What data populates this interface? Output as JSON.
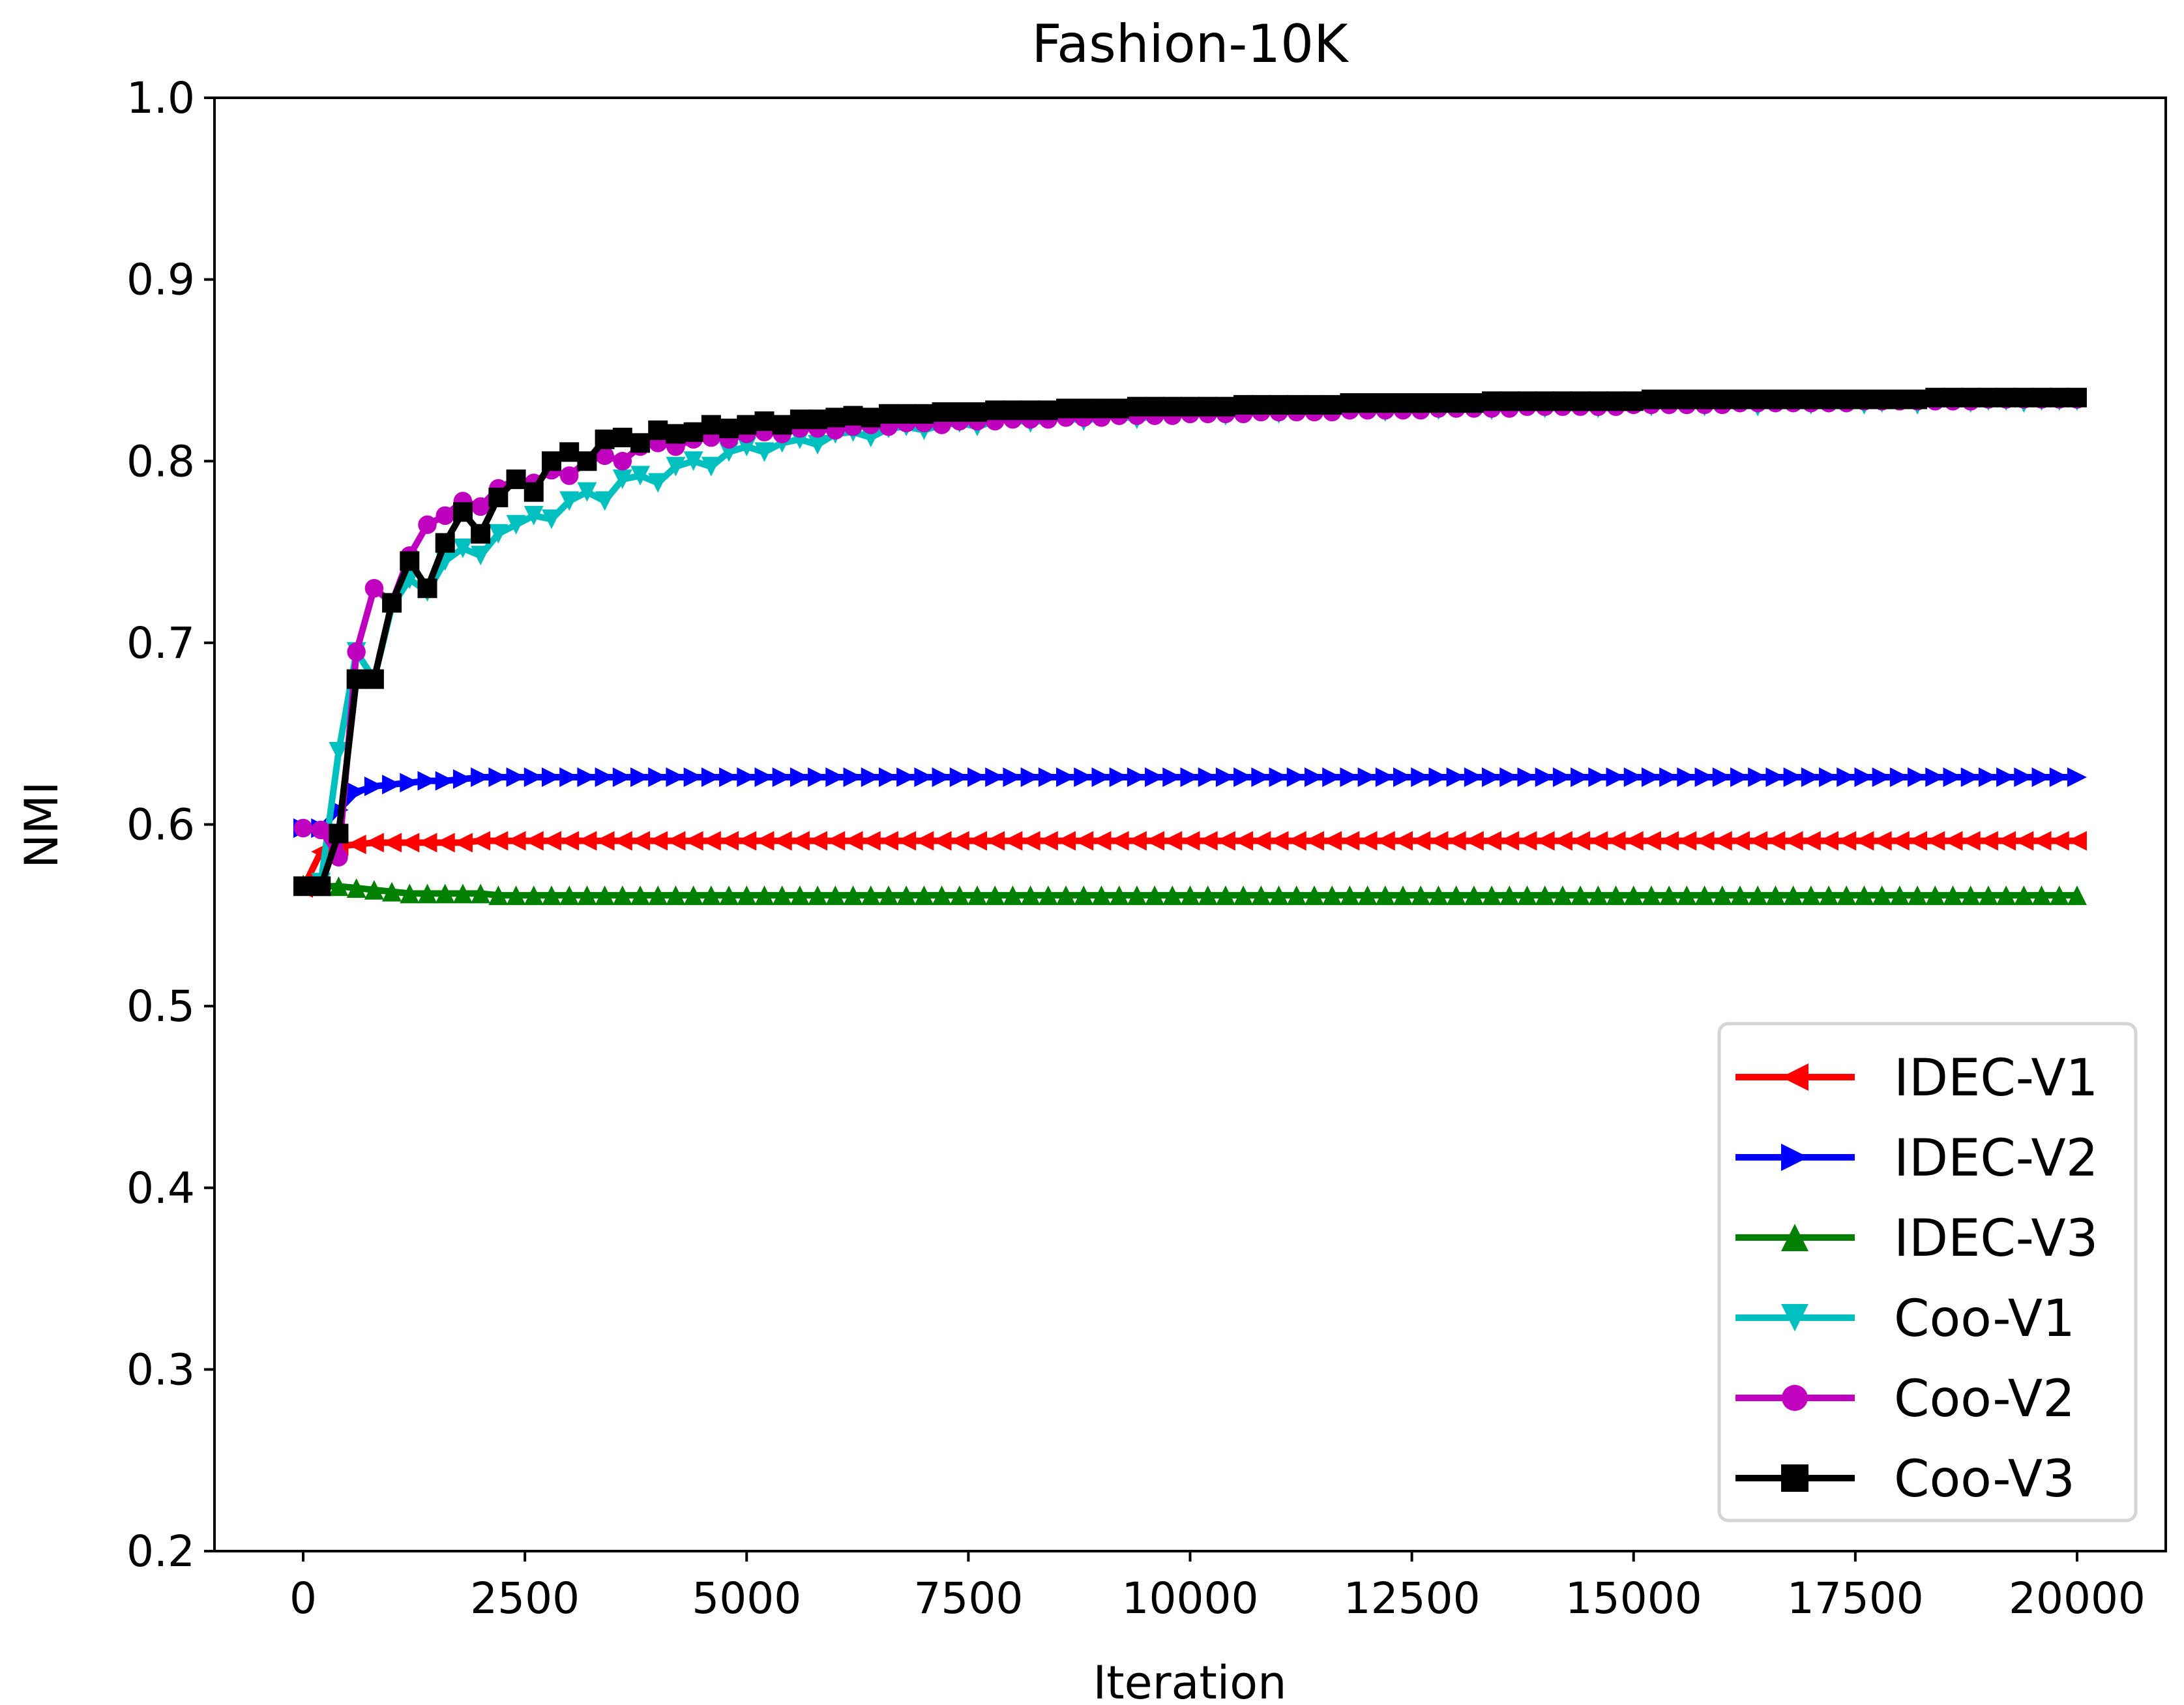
{
  "chart_data": {
    "type": "line",
    "title": "Fashion-10K",
    "xlabel": "Iteration",
    "ylabel": "NMI",
    "xlim": [
      -1000,
      21000
    ],
    "ylim": [
      0.2,
      1.0
    ],
    "grid": false,
    "legend_placement": "lower-right",
    "xticks": [
      0,
      2500,
      5000,
      7500,
      10000,
      12500,
      15000,
      17500,
      20000
    ],
    "yticks": [
      0.2,
      0.3,
      0.4,
      0.5,
      0.6,
      0.7,
      0.8,
      0.9,
      1.0
    ],
    "ytick_labels": [
      "0.2",
      "0.3",
      "0.4",
      "0.5",
      "0.6",
      "0.7",
      "0.8",
      "0.9",
      "1.0"
    ],
    "x": [
      0,
      200,
      400,
      600,
      800,
      1000,
      1200,
      1400,
      1600,
      1800,
      2000,
      2200,
      2400,
      2600,
      2800,
      3000,
      3200,
      3400,
      3600,
      3800,
      4000,
      4200,
      4400,
      4600,
      4800,
      5000,
      5200,
      5400,
      5600,
      5800,
      6000,
      6200,
      6400,
      6600,
      6800,
      7000,
      7200,
      7400,
      7600,
      7800,
      8000,
      8200,
      8400,
      8600,
      8800,
      9000,
      9200,
      9400,
      9600,
      9800,
      10000,
      10200,
      10400,
      10600,
      10800,
      11000,
      11200,
      11400,
      11600,
      11800,
      12000,
      12200,
      12400,
      12600,
      12800,
      13000,
      13200,
      13400,
      13600,
      13800,
      14000,
      14200,
      14400,
      14600,
      14800,
      15000,
      15200,
      15400,
      15600,
      15800,
      16000,
      16200,
      16400,
      16600,
      16800,
      17000,
      17200,
      17400,
      17600,
      17800,
      18000,
      18200,
      18400,
      18600,
      18800,
      19000,
      19200,
      19400,
      19600,
      19800,
      20000
    ],
    "series": [
      {
        "name": "IDEC-V1",
        "color": "#ff0000",
        "marker": "triangle-left",
        "values": [
          0.565,
          0.585,
          0.588,
          0.589,
          0.59,
          0.59,
          0.59,
          0.59,
          0.59,
          0.59,
          0.591,
          0.591,
          0.591,
          0.591,
          0.591,
          0.591,
          0.591,
          0.591,
          0.591,
          0.591,
          0.591,
          0.591,
          0.591,
          0.591,
          0.591,
          0.591,
          0.591,
          0.591,
          0.591,
          0.591,
          0.591,
          0.591,
          0.591,
          0.591,
          0.591,
          0.591,
          0.591,
          0.591,
          0.591,
          0.591,
          0.591,
          0.591,
          0.591,
          0.591,
          0.591,
          0.591,
          0.591,
          0.591,
          0.591,
          0.591,
          0.591,
          0.591,
          0.591,
          0.591,
          0.591,
          0.591,
          0.591,
          0.591,
          0.591,
          0.591,
          0.591,
          0.591,
          0.591,
          0.591,
          0.591,
          0.591,
          0.591,
          0.591,
          0.591,
          0.591,
          0.591,
          0.591,
          0.591,
          0.591,
          0.591,
          0.591,
          0.591,
          0.591,
          0.591,
          0.591,
          0.591,
          0.591,
          0.591,
          0.591,
          0.591,
          0.591,
          0.591,
          0.591,
          0.591,
          0.591,
          0.591,
          0.591,
          0.591,
          0.591,
          0.591,
          0.591,
          0.591,
          0.591,
          0.591,
          0.591,
          0.591
        ]
      },
      {
        "name": "IDEC-V2",
        "color": "#0000ff",
        "marker": "triangle-right",
        "values": [
          0.598,
          0.598,
          0.608,
          0.618,
          0.621,
          0.622,
          0.623,
          0.624,
          0.624,
          0.625,
          0.626,
          0.626,
          0.626,
          0.626,
          0.626,
          0.626,
          0.626,
          0.626,
          0.626,
          0.626,
          0.626,
          0.626,
          0.626,
          0.626,
          0.626,
          0.626,
          0.626,
          0.626,
          0.626,
          0.626,
          0.626,
          0.626,
          0.626,
          0.626,
          0.626,
          0.626,
          0.626,
          0.626,
          0.626,
          0.626,
          0.626,
          0.626,
          0.626,
          0.626,
          0.626,
          0.626,
          0.626,
          0.626,
          0.626,
          0.626,
          0.626,
          0.626,
          0.626,
          0.626,
          0.626,
          0.626,
          0.626,
          0.626,
          0.626,
          0.626,
          0.626,
          0.626,
          0.626,
          0.626,
          0.626,
          0.626,
          0.626,
          0.626,
          0.626,
          0.626,
          0.626,
          0.626,
          0.626,
          0.626,
          0.626,
          0.626,
          0.626,
          0.626,
          0.626,
          0.626,
          0.626,
          0.626,
          0.626,
          0.626,
          0.626,
          0.626,
          0.626,
          0.626,
          0.626,
          0.626,
          0.626,
          0.626,
          0.626,
          0.626,
          0.626,
          0.626,
          0.626,
          0.626,
          0.626,
          0.626,
          0.626
        ]
      },
      {
        "name": "IDEC-V3",
        "color": "#008000",
        "marker": "triangle-up",
        "values": [
          0.567,
          0.566,
          0.566,
          0.565,
          0.564,
          0.563,
          0.562,
          0.562,
          0.562,
          0.562,
          0.562,
          0.561,
          0.561,
          0.561,
          0.561,
          0.561,
          0.561,
          0.561,
          0.561,
          0.561,
          0.561,
          0.561,
          0.561,
          0.561,
          0.561,
          0.561,
          0.561,
          0.561,
          0.561,
          0.561,
          0.561,
          0.561,
          0.561,
          0.561,
          0.561,
          0.561,
          0.561,
          0.561,
          0.561,
          0.561,
          0.561,
          0.561,
          0.561,
          0.561,
          0.561,
          0.561,
          0.561,
          0.561,
          0.561,
          0.561,
          0.561,
          0.561,
          0.561,
          0.561,
          0.561,
          0.561,
          0.561,
          0.561,
          0.561,
          0.561,
          0.561,
          0.561,
          0.561,
          0.561,
          0.561,
          0.561,
          0.561,
          0.561,
          0.561,
          0.561,
          0.561,
          0.561,
          0.561,
          0.561,
          0.561,
          0.561,
          0.561,
          0.561,
          0.561,
          0.561,
          0.561,
          0.561,
          0.561,
          0.561,
          0.561,
          0.561,
          0.561,
          0.561,
          0.561,
          0.561,
          0.561,
          0.561,
          0.561,
          0.561,
          0.561,
          0.561,
          0.561,
          0.561,
          0.561,
          0.561,
          0.561
        ]
      },
      {
        "name": "Coo-V1",
        "color": "#00bfbf",
        "marker": "triangle-down",
        "values": [
          0.566,
          0.568,
          0.64,
          0.695,
          0.68,
          0.72,
          0.735,
          0.728,
          0.745,
          0.752,
          0.748,
          0.76,
          0.765,
          0.77,
          0.768,
          0.778,
          0.783,
          0.778,
          0.79,
          0.792,
          0.788,
          0.797,
          0.8,
          0.797,
          0.805,
          0.808,
          0.805,
          0.81,
          0.812,
          0.809,
          0.815,
          0.816,
          0.813,
          0.818,
          0.819,
          0.817,
          0.82,
          0.821,
          0.819,
          0.822,
          0.823,
          0.821,
          0.823,
          0.824,
          0.822,
          0.824,
          0.825,
          0.823,
          0.825,
          0.826,
          0.826,
          0.827,
          0.825,
          0.827,
          0.828,
          0.826,
          0.828,
          0.828,
          0.827,
          0.828,
          0.829,
          0.827,
          0.829,
          0.829,
          0.828,
          0.829,
          0.83,
          0.828,
          0.83,
          0.83,
          0.829,
          0.83,
          0.831,
          0.829,
          0.831,
          0.831,
          0.83,
          0.831,
          0.831,
          0.83,
          0.832,
          0.832,
          0.83,
          0.832,
          0.832,
          0.831,
          0.832,
          0.832,
          0.831,
          0.832,
          0.833,
          0.831,
          0.833,
          0.833,
          0.832,
          0.833,
          0.833,
          0.832,
          0.833,
          0.833,
          0.833
        ]
      },
      {
        "name": "Coo-V2",
        "color": "#bf00bf",
        "marker": "circle",
        "values": [
          0.598,
          0.597,
          0.582,
          0.695,
          0.73,
          0.722,
          0.748,
          0.765,
          0.77,
          0.778,
          0.775,
          0.785,
          0.79,
          0.788,
          0.795,
          0.792,
          0.8,
          0.803,
          0.8,
          0.808,
          0.81,
          0.808,
          0.812,
          0.813,
          0.812,
          0.815,
          0.816,
          0.815,
          0.818,
          0.818,
          0.817,
          0.819,
          0.82,
          0.819,
          0.821,
          0.821,
          0.82,
          0.822,
          0.822,
          0.822,
          0.823,
          0.823,
          0.823,
          0.824,
          0.824,
          0.824,
          0.825,
          0.825,
          0.825,
          0.825,
          0.826,
          0.826,
          0.826,
          0.826,
          0.827,
          0.827,
          0.827,
          0.827,
          0.827,
          0.828,
          0.828,
          0.828,
          0.828,
          0.828,
          0.829,
          0.829,
          0.829,
          0.829,
          0.829,
          0.83,
          0.83,
          0.83,
          0.83,
          0.83,
          0.83,
          0.831,
          0.831,
          0.831,
          0.831,
          0.831,
          0.831,
          0.832,
          0.832,
          0.832,
          0.832,
          0.832,
          0.832,
          0.832,
          0.833,
          0.833,
          0.833,
          0.833,
          0.833,
          0.833,
          0.833,
          0.834,
          0.834,
          0.834,
          0.834,
          0.834,
          0.834
        ]
      },
      {
        "name": "Coo-V3",
        "color": "#000000",
        "marker": "square",
        "values": [
          0.566,
          0.566,
          0.595,
          0.68,
          0.68,
          0.722,
          0.745,
          0.73,
          0.755,
          0.772,
          0.76,
          0.78,
          0.79,
          0.783,
          0.8,
          0.805,
          0.8,
          0.812,
          0.813,
          0.81,
          0.817,
          0.815,
          0.816,
          0.82,
          0.818,
          0.82,
          0.822,
          0.82,
          0.823,
          0.823,
          0.824,
          0.825,
          0.824,
          0.826,
          0.826,
          0.826,
          0.827,
          0.827,
          0.827,
          0.828,
          0.828,
          0.828,
          0.828,
          0.829,
          0.829,
          0.829,
          0.829,
          0.83,
          0.83,
          0.83,
          0.83,
          0.83,
          0.83,
          0.831,
          0.831,
          0.831,
          0.831,
          0.831,
          0.831,
          0.832,
          0.832,
          0.832,
          0.832,
          0.832,
          0.832,
          0.832,
          0.832,
          0.833,
          0.833,
          0.833,
          0.833,
          0.833,
          0.833,
          0.833,
          0.833,
          0.833,
          0.834,
          0.834,
          0.834,
          0.834,
          0.834,
          0.834,
          0.834,
          0.834,
          0.834,
          0.834,
          0.834,
          0.834,
          0.834,
          0.834,
          0.834,
          0.834,
          0.835,
          0.835,
          0.835,
          0.835,
          0.835,
          0.835,
          0.835,
          0.835,
          0.835
        ]
      }
    ]
  }
}
